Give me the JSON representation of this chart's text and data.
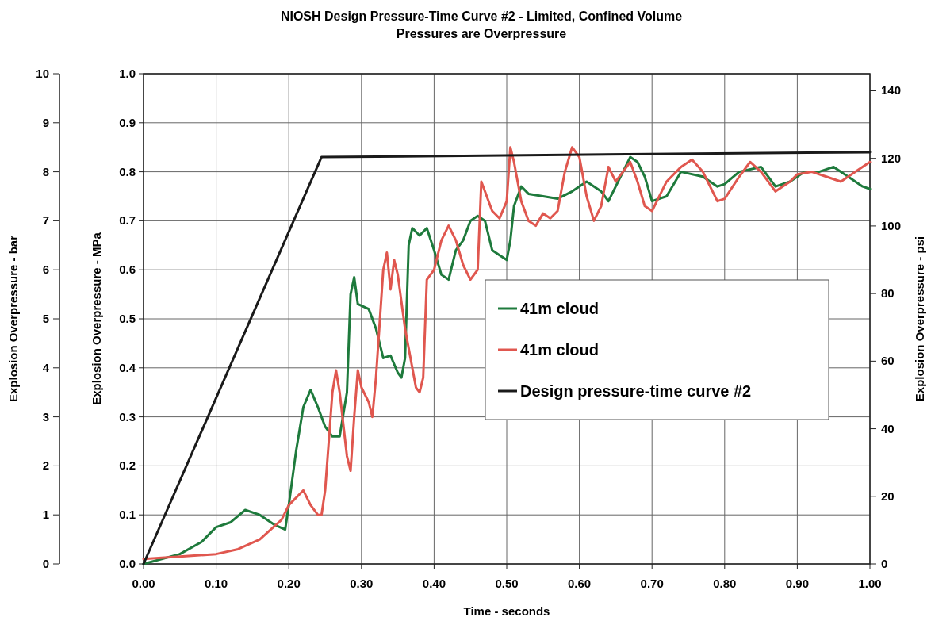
{
  "chart_data": {
    "type": "line",
    "title": "NIOSH Design Pressure-Time Curve #2 - Limited, Confined Volume",
    "subtitle": "Pressures are Overpressure",
    "xlabel": "Time - seconds",
    "ylabel": "Explosion Overpressure - MPa",
    "y2label": "Explosion Overpressure - psi",
    "y3label": "Explosion Overpressure - bar",
    "xlim": [
      0,
      1
    ],
    "xticks": [
      {
        "value": 0,
        "label": "0.00"
      },
      {
        "value": 0.1,
        "label": "0.10"
      },
      {
        "value": 0.2,
        "label": "0.20"
      },
      {
        "value": 0.3,
        "label": "0.30"
      },
      {
        "value": 0.4,
        "label": "0.40"
      },
      {
        "value": 0.5,
        "label": "0.50"
      },
      {
        "value": 0.6,
        "label": "0.60"
      },
      {
        "value": 0.7,
        "label": "0.70"
      },
      {
        "value": 0.8,
        "label": "0.80"
      },
      {
        "value": 0.9,
        "label": "0.90"
      },
      {
        "value": 1,
        "label": "1.00"
      }
    ],
    "ylim": [
      0,
      1
    ],
    "yticks": [
      {
        "value": 0,
        "label": "0.0"
      },
      {
        "value": 0.1,
        "label": "0.1"
      },
      {
        "value": 0.2,
        "label": "0.2"
      },
      {
        "value": 0.3,
        "label": "0.3"
      },
      {
        "value": 0.4,
        "label": "0.4"
      },
      {
        "value": 0.5,
        "label": "0.5"
      },
      {
        "value": 0.6,
        "label": "0.6"
      },
      {
        "value": 0.7,
        "label": "0.7"
      },
      {
        "value": 0.8,
        "label": "0.8"
      },
      {
        "value": 0.9,
        "label": "0.9"
      },
      {
        "value": 1,
        "label": "1.0"
      }
    ],
    "y2lim": [
      0,
      145.04
    ],
    "y2ticks": [
      0,
      20,
      40,
      60,
      80,
      100,
      120,
      140
    ],
    "y3lim": [
      0,
      10
    ],
    "y3ticks": [
      0,
      1,
      2,
      3,
      4,
      5,
      6,
      7,
      8,
      9,
      10
    ],
    "grid": true,
    "legend": "right",
    "marker": "none",
    "line_style": "solid",
    "series": [
      {
        "name": "41m cloud",
        "color": "#1e7a3c",
        "x": [
          0,
          0.05,
          0.08,
          0.1,
          0.12,
          0.14,
          0.16,
          0.18,
          0.195,
          0.2,
          0.21,
          0.22,
          0.23,
          0.24,
          0.25,
          0.26,
          0.27,
          0.28,
          0.285,
          0.29,
          0.295,
          0.31,
          0.32,
          0.33,
          0.34,
          0.35,
          0.355,
          0.36,
          0.365,
          0.37,
          0.38,
          0.39,
          0.4,
          0.41,
          0.42,
          0.43,
          0.44,
          0.45,
          0.46,
          0.47,
          0.48,
          0.49,
          0.5,
          0.505,
          0.51,
          0.52,
          0.53,
          0.55,
          0.57,
          0.59,
          0.61,
          0.63,
          0.64,
          0.66,
          0.67,
          0.68,
          0.69,
          0.7,
          0.72,
          0.74,
          0.77,
          0.79,
          0.8,
          0.82,
          0.85,
          0.87,
          0.89,
          0.91,
          0.93,
          0.95,
          0.97,
          0.99,
          1
        ],
        "values": [
          0,
          0.02,
          0.045,
          0.075,
          0.085,
          0.11,
          0.1,
          0.08,
          0.07,
          0.12,
          0.23,
          0.32,
          0.355,
          0.32,
          0.28,
          0.26,
          0.26,
          0.35,
          0.55,
          0.585,
          0.53,
          0.52,
          0.48,
          0.42,
          0.425,
          0.39,
          0.38,
          0.42,
          0.65,
          0.685,
          0.67,
          0.685,
          0.64,
          0.59,
          0.58,
          0.64,
          0.66,
          0.7,
          0.71,
          0.7,
          0.64,
          0.63,
          0.62,
          0.66,
          0.73,
          0.77,
          0.755,
          0.75,
          0.745,
          0.76,
          0.78,
          0.76,
          0.74,
          0.8,
          0.83,
          0.82,
          0.79,
          0.74,
          0.75,
          0.8,
          0.79,
          0.77,
          0.775,
          0.8,
          0.81,
          0.77,
          0.78,
          0.8,
          0.8,
          0.81,
          0.79,
          0.77,
          0.765
        ]
      },
      {
        "name": "41m cloud",
        "color": "#e0574f",
        "x": [
          0,
          0.05,
          0.1,
          0.13,
          0.16,
          0.19,
          0.2,
          0.22,
          0.23,
          0.24,
          0.245,
          0.25,
          0.26,
          0.265,
          0.27,
          0.28,
          0.285,
          0.29,
          0.295,
          0.3,
          0.31,
          0.315,
          0.32,
          0.33,
          0.335,
          0.34,
          0.345,
          0.35,
          0.36,
          0.37,
          0.375,
          0.38,
          0.385,
          0.39,
          0.4,
          0.41,
          0.42,
          0.43,
          0.44,
          0.45,
          0.46,
          0.465,
          0.47,
          0.48,
          0.49,
          0.5,
          0.505,
          0.51,
          0.52,
          0.53,
          0.54,
          0.55,
          0.56,
          0.57,
          0.58,
          0.59,
          0.6,
          0.61,
          0.62,
          0.63,
          0.64,
          0.65,
          0.66,
          0.67,
          0.68,
          0.69,
          0.7,
          0.72,
          0.74,
          0.755,
          0.77,
          0.79,
          0.8,
          0.82,
          0.835,
          0.85,
          0.87,
          0.89,
          0.9,
          0.92,
          0.94,
          0.96,
          0.98,
          1
        ],
        "values": [
          0.01,
          0.015,
          0.02,
          0.03,
          0.05,
          0.09,
          0.12,
          0.15,
          0.12,
          0.1,
          0.1,
          0.15,
          0.35,
          0.395,
          0.35,
          0.22,
          0.19,
          0.3,
          0.395,
          0.36,
          0.33,
          0.3,
          0.38,
          0.6,
          0.635,
          0.56,
          0.62,
          0.59,
          0.48,
          0.4,
          0.36,
          0.35,
          0.38,
          0.58,
          0.6,
          0.66,
          0.69,
          0.66,
          0.61,
          0.58,
          0.6,
          0.78,
          0.76,
          0.72,
          0.705,
          0.74,
          0.85,
          0.82,
          0.74,
          0.7,
          0.69,
          0.715,
          0.705,
          0.72,
          0.8,
          0.85,
          0.83,
          0.75,
          0.7,
          0.73,
          0.81,
          0.78,
          0.8,
          0.82,
          0.78,
          0.73,
          0.72,
          0.78,
          0.81,
          0.825,
          0.8,
          0.74,
          0.745,
          0.79,
          0.82,
          0.8,
          0.76,
          0.78,
          0.795,
          0.8,
          0.79,
          0.78,
          0.8,
          0.82
        ]
      },
      {
        "name": "Design pressure-time curve #2",
        "color": "#1a1a1a",
        "x": [
          0,
          0.245,
          1
        ],
        "values": [
          0,
          0.83,
          0.84
        ]
      }
    ]
  }
}
